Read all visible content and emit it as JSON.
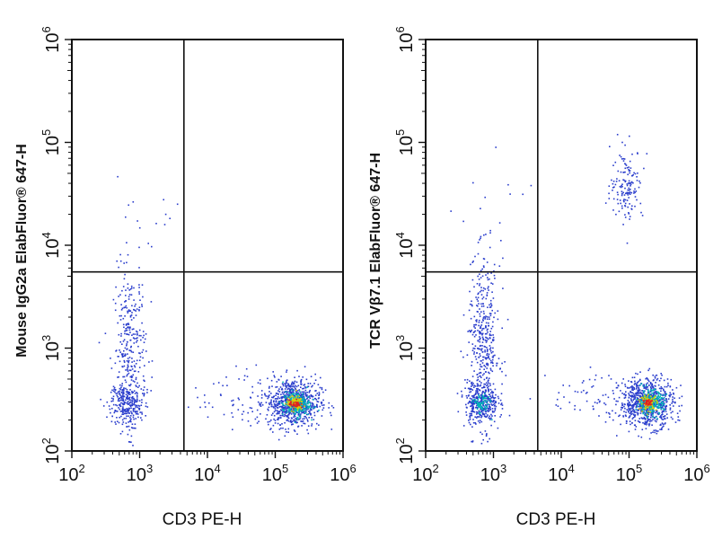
{
  "chart_data": [
    {
      "type": "scatter",
      "subtype": "flow-cytometry-density-dot-plot",
      "xlabel": "CD3 PE-H",
      "ylabel": "Mouse IgG2a ElabFluor® 647-H",
      "xscale": "log",
      "yscale": "log",
      "xlim": [
        100,
        1000000
      ],
      "ylim": [
        100,
        1000000
      ],
      "x_ticks": [
        {
          "base": "10",
          "exp": "2"
        },
        {
          "base": "10",
          "exp": "3"
        },
        {
          "base": "10",
          "exp": "4"
        },
        {
          "base": "10",
          "exp": "5"
        },
        {
          "base": "10",
          "exp": "6"
        }
      ],
      "y_ticks": [
        {
          "base": "10",
          "exp": "2"
        },
        {
          "base": "10",
          "exp": "3"
        },
        {
          "base": "10",
          "exp": "4"
        },
        {
          "base": "10",
          "exp": "5"
        },
        {
          "base": "10",
          "exp": "6"
        }
      ],
      "gate": {
        "x": 4500,
        "y": 5500
      },
      "populations": [
        {
          "x": 650,
          "y": 300,
          "n": 260,
          "sx": 0.12,
          "sy": 0.1,
          "color": "#2a3dcc"
        },
        {
          "x": 700,
          "y": 1000,
          "n": 300,
          "sx": 0.12,
          "sy": 0.38,
          "color": "#2a3dcc"
        },
        {
          "x": 180000,
          "y": 300,
          "n": 750,
          "sx": 0.2,
          "sy": 0.12,
          "color": "#2a3dcc"
        },
        {
          "x": 200000,
          "y": 290,
          "n": 220,
          "sx": 0.1,
          "sy": 0.06,
          "color": "#00b7b7"
        },
        {
          "x": 190000,
          "y": 295,
          "n": 90,
          "sx": 0.06,
          "sy": 0.035,
          "color": "#e0d000"
        },
        {
          "x": 190000,
          "y": 290,
          "n": 40,
          "sx": 0.04,
          "sy": 0.02,
          "color": "#e02020"
        },
        {
          "x": 30000,
          "y": 320,
          "n": 60,
          "sx": 0.35,
          "sy": 0.15,
          "color": "#2a3dcc"
        },
        {
          "x": 1200,
          "y": 20000,
          "n": 15,
          "sx": 0.3,
          "sy": 0.25,
          "color": "#2a3dcc"
        }
      ]
    },
    {
      "type": "scatter",
      "subtype": "flow-cytometry-density-dot-plot",
      "xlabel": "CD3 PE-H",
      "ylabel": "TCR Vβ7.1 ElabFluor® 647-H",
      "xscale": "log",
      "yscale": "log",
      "xlim": [
        100,
        1000000
      ],
      "ylim": [
        100,
        1000000
      ],
      "x_ticks": [
        {
          "base": "10",
          "exp": "2"
        },
        {
          "base": "10",
          "exp": "3"
        },
        {
          "base": "10",
          "exp": "4"
        },
        {
          "base": "10",
          "exp": "5"
        },
        {
          "base": "10",
          "exp": "6"
        }
      ],
      "y_ticks": [
        {
          "base": "10",
          "exp": "2"
        },
        {
          "base": "10",
          "exp": "3"
        },
        {
          "base": "10",
          "exp": "4"
        },
        {
          "base": "10",
          "exp": "5"
        },
        {
          "base": "10",
          "exp": "6"
        }
      ],
      "gate": {
        "x": 4500,
        "y": 5500
      },
      "populations": [
        {
          "x": 650,
          "y": 300,
          "n": 320,
          "sx": 0.12,
          "sy": 0.1,
          "color": "#2a3dcc"
        },
        {
          "x": 700,
          "y": 1100,
          "n": 420,
          "sx": 0.12,
          "sy": 0.4,
          "color": "#2a3dcc"
        },
        {
          "x": 650,
          "y": 290,
          "n": 70,
          "sx": 0.06,
          "sy": 0.05,
          "color": "#00b7b7"
        },
        {
          "x": 180000,
          "y": 300,
          "n": 750,
          "sx": 0.2,
          "sy": 0.12,
          "color": "#2a3dcc"
        },
        {
          "x": 200000,
          "y": 300,
          "n": 220,
          "sx": 0.1,
          "sy": 0.06,
          "color": "#00b7b7"
        },
        {
          "x": 190000,
          "y": 300,
          "n": 90,
          "sx": 0.06,
          "sy": 0.035,
          "color": "#e0d000"
        },
        {
          "x": 190000,
          "y": 300,
          "n": 40,
          "sx": 0.04,
          "sy": 0.02,
          "color": "#e02020"
        },
        {
          "x": 90000,
          "y": 40000,
          "n": 150,
          "sx": 0.12,
          "sy": 0.17,
          "color": "#2a3dcc"
        },
        {
          "x": 30000,
          "y": 320,
          "n": 60,
          "sx": 0.35,
          "sy": 0.15,
          "color": "#2a3dcc"
        },
        {
          "x": 1200,
          "y": 20000,
          "n": 15,
          "sx": 0.3,
          "sy": 0.25,
          "color": "#2a3dcc"
        }
      ]
    }
  ]
}
